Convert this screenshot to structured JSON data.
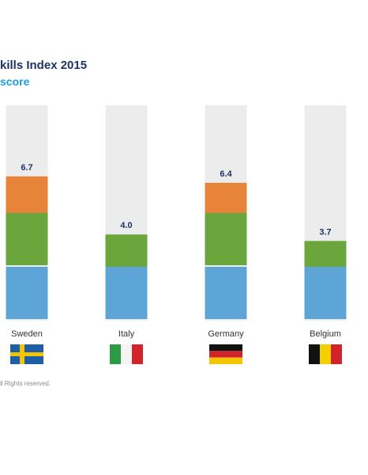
{
  "chart_data": {
    "type": "bar",
    "title": "kills Index 2015",
    "subtitle": "score",
    "categories": [
      "Sweden",
      "Italy",
      "Germany",
      "Belgium"
    ],
    "values": [
      6.7,
      4.0,
      6.4,
      3.7
    ],
    "value_labels": [
      "6.7",
      "4.0",
      "6.4",
      "3.7"
    ],
    "ylim": [
      0,
      10
    ],
    "segment_colors": [
      "#5da5d6",
      "#6aa63b",
      "#e8833a"
    ],
    "background_color": "#ececec",
    "grid": false,
    "legend": "none",
    "flags": [
      "sweden-flag",
      "italy-flag",
      "germany-flag",
      "belgium-flag"
    ]
  },
  "footer": {
    "note": "ll Rights reserved."
  }
}
